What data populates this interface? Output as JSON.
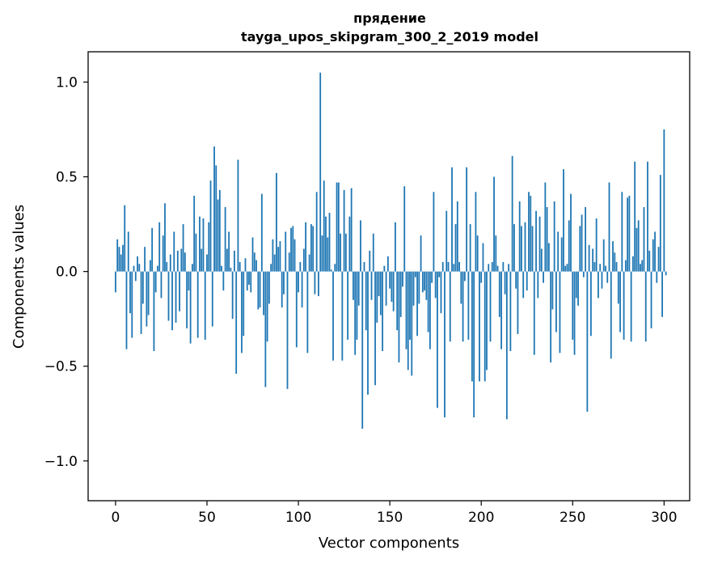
{
  "chart_data": {
    "type": "bar",
    "title": "прядение",
    "subtitle": "tayga_upos_skipgram_300_2_2019 model",
    "xlabel": "Vector components",
    "ylabel": "Components values",
    "xlim": [
      -15,
      314
    ],
    "ylim": [
      -1.21,
      1.16
    ],
    "x_ticks": [
      0,
      50,
      100,
      150,
      200,
      250,
      300
    ],
    "x_tick_labels": [
      "0",
      "50",
      "100",
      "150",
      "200",
      "250",
      "300"
    ],
    "y_ticks": [
      -1.0,
      -0.5,
      0.0,
      0.5,
      1.0
    ],
    "y_tick_labels": [
      "−1.0",
      "−0.5",
      "0.0",
      "0.5",
      "1.0"
    ],
    "bar_color": "#1f77b4",
    "series": [
      {
        "name": "прядение",
        "values": [
          -0.11,
          0.17,
          0.13,
          0.09,
          0.14,
          0.35,
          -0.41,
          0.21,
          -0.22,
          -0.35,
          0.03,
          -0.05,
          0.08,
          0.04,
          -0.33,
          -0.17,
          0.13,
          -0.29,
          -0.23,
          0.06,
          0.23,
          -0.42,
          -0.11,
          0.03,
          0.26,
          -0.14,
          0.19,
          0.36,
          0.05,
          -0.26,
          0.09,
          -0.31,
          0.21,
          -0.27,
          0.11,
          -0.21,
          0.12,
          0.25,
          0.1,
          -0.3,
          -0.1,
          -0.38,
          0.04,
          0.4,
          0.2,
          -0.35,
          0.29,
          0.12,
          0.28,
          -0.36,
          0.09,
          0.26,
          0.48,
          -0.29,
          0.66,
          0.56,
          0.38,
          0.43,
          0.03,
          -0.1,
          0.34,
          0.12,
          0.21,
          0.02,
          -0.25,
          0.11,
          -0.54,
          0.59,
          0.05,
          -0.43,
          -0.34,
          0.07,
          -0.1,
          -0.07,
          -0.11,
          0.18,
          0.1,
          0.06,
          -0.2,
          -0.19,
          0.41,
          -0.23,
          -0.61,
          -0.37,
          -0.17,
          0.04,
          0.17,
          0.09,
          0.52,
          0.13,
          0.16,
          -0.19,
          -0.12,
          0.21,
          -0.62,
          0.1,
          0.23,
          0.24,
          0.17,
          -0.4,
          -0.11,
          0.05,
          -0.19,
          0.12,
          0.26,
          -0.43,
          0.09,
          0.25,
          0.24,
          -0.12,
          0.42,
          -0.13,
          1.05,
          0.19,
          0.48,
          0.29,
          0.18,
          0.31,
          0.01,
          -0.47,
          0.04,
          0.47,
          0.47,
          0.2,
          -0.47,
          0.43,
          0.2,
          -0.36,
          0.29,
          0.44,
          -0.15,
          -0.44,
          -0.36,
          -0.18,
          0.27,
          -0.83,
          0.05,
          -0.31,
          -0.65,
          0.11,
          -0.15,
          0.2,
          -0.6,
          -0.27,
          -0.13,
          -0.23,
          -0.42,
          0.03,
          -0.18,
          0.08,
          -0.09,
          -0.16,
          -0.21,
          0.26,
          -0.31,
          -0.48,
          -0.24,
          -0.08,
          0.45,
          -0.41,
          -0.52,
          -0.36,
          -0.55,
          -0.18,
          -0.03,
          -0.34,
          -0.17,
          0.19,
          -0.11,
          -0.1,
          -0.15,
          -0.32,
          -0.41,
          -0.06,
          0.42,
          -0.14,
          -0.72,
          -0.03,
          -0.22,
          0.05,
          -0.77,
          0.32,
          0.05,
          -0.37,
          0.55,
          0.04,
          0.25,
          0.37,
          0.05,
          -0.17,
          -0.37,
          -0.05,
          0.55,
          -0.36,
          0.25,
          -0.58,
          -0.77,
          0.42,
          0.19,
          -0.58,
          -0.06,
          0.15,
          -0.58,
          -0.52,
          0.04,
          -0.37,
          0.05,
          0.5,
          0.19,
          0.03,
          -0.24,
          -0.41,
          0.05,
          -0.12,
          -0.78,
          0.04,
          -0.42,
          0.61,
          0.25,
          -0.09,
          -0.33,
          0.37,
          0.24,
          -0.14,
          0.26,
          -0.1,
          0.42,
          0.4,
          0.24,
          -0.44,
          0.32,
          -0.14,
          0.29,
          0.12,
          -0.06,
          0.47,
          0.34,
          0.15,
          -0.48,
          -0.2,
          0.37,
          -0.32,
          0.21,
          -0.43,
          0.18,
          0.54,
          0.03,
          0.04,
          0.27,
          0.41,
          -0.36,
          -0.44,
          -0.14,
          -0.18,
          0.24,
          0.3,
          -0.03,
          0.34,
          -0.74,
          0.14,
          -0.34,
          0.12,
          0.05,
          0.28,
          -0.14,
          0.04,
          -0.09,
          0.17,
          0.03,
          -0.06,
          0.47,
          -0.46,
          0.16,
          0.1,
          0.05,
          -0.17,
          -0.32,
          0.42,
          -0.36,
          0.06,
          0.39,
          0.4,
          -0.37,
          0.08,
          0.58,
          0.23,
          0.27,
          0.04,
          0.06,
          0.34,
          -0.37,
          0.58,
          0.11,
          -0.3,
          0.17,
          0.21,
          -0.06,
          0.13,
          0.51,
          -0.24,
          0.75,
          -0.02
        ]
      }
    ]
  }
}
